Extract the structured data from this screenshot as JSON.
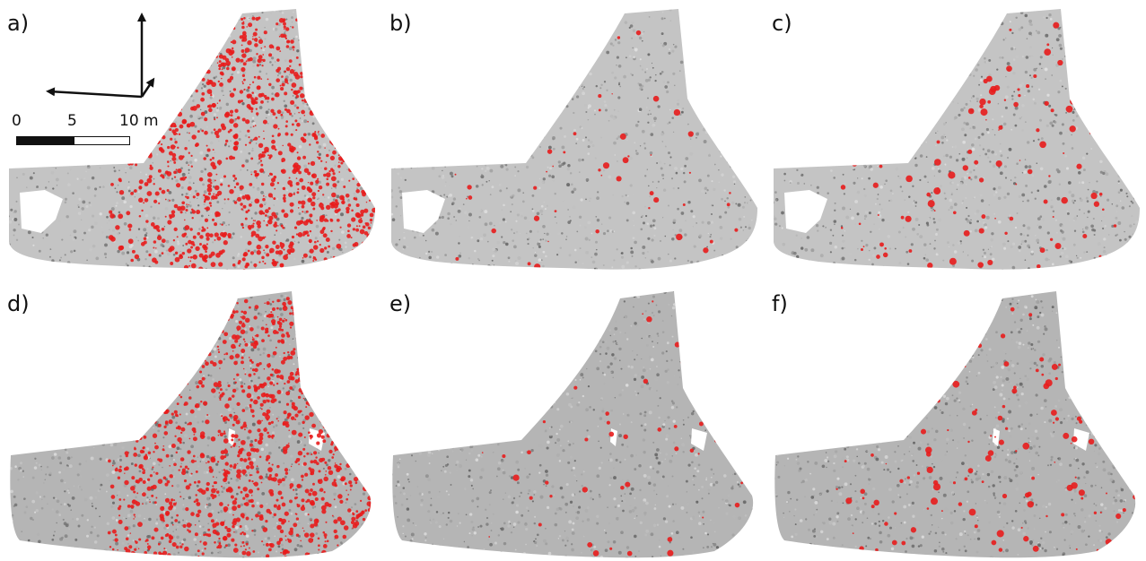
{
  "panels": [
    {
      "id": "a",
      "label": "a)",
      "shape": "top",
      "density": "very-high"
    },
    {
      "id": "b",
      "label": "b)",
      "shape": "top",
      "density": "low"
    },
    {
      "id": "c",
      "label": "c)",
      "shape": "top",
      "density": "medium"
    },
    {
      "id": "d",
      "label": "d)",
      "shape": "bottom",
      "density": "very-high"
    },
    {
      "id": "e",
      "label": "e)",
      "shape": "bottom",
      "density": "low"
    },
    {
      "id": "f",
      "label": "f)",
      "shape": "bottom",
      "density": "medium"
    }
  ],
  "scale_bar": {
    "tick_0": "0",
    "tick_5": "5",
    "tick_10": "10 m"
  },
  "colors": {
    "highlight": "#e81c1c",
    "point_cloud": "#9a9a9a",
    "text": "#111111"
  }
}
